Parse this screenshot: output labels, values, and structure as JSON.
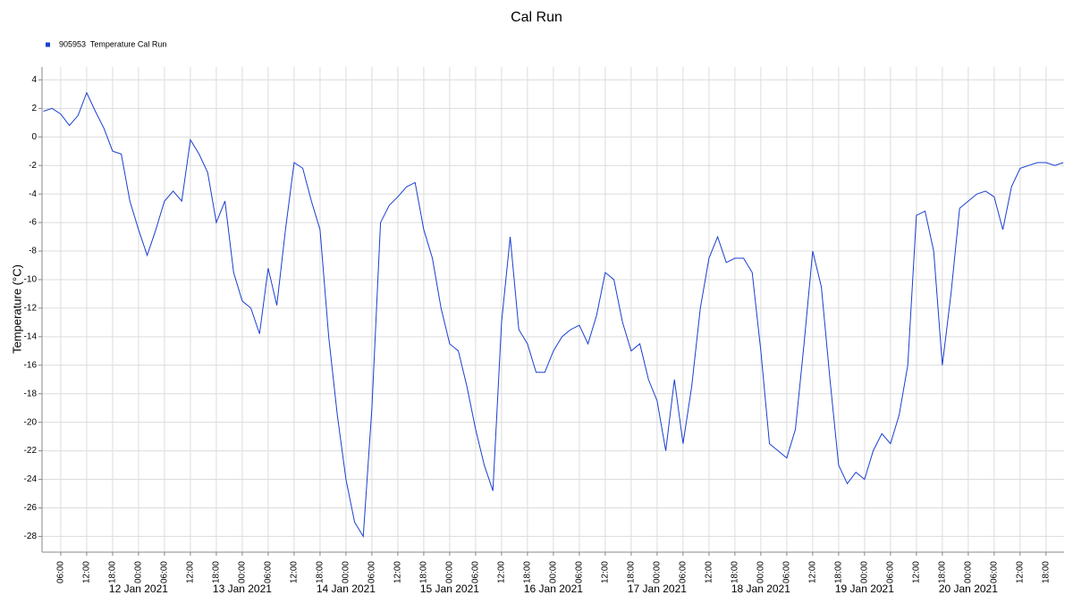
{
  "chart_data": {
    "type": "line",
    "title": "Cal Run",
    "ylabel": "Temperature (°C)",
    "series": [
      {
        "name": "905953  Temperature Cal Run",
        "color": "#1a3fd0",
        "x": [
          "2021-01-11T02:00",
          "2021-01-11T04:00",
          "2021-01-11T06:00",
          "2021-01-11T08:00",
          "2021-01-11T10:00",
          "2021-01-11T12:00",
          "2021-01-11T14:00",
          "2021-01-11T16:00",
          "2021-01-11T18:00",
          "2021-01-11T20:00",
          "2021-01-11T22:00",
          "2021-01-12T00:00",
          "2021-01-12T02:00",
          "2021-01-12T04:00",
          "2021-01-12T06:00",
          "2021-01-12T08:00",
          "2021-01-12T10:00",
          "2021-01-12T12:00",
          "2021-01-12T14:00",
          "2021-01-12T16:00",
          "2021-01-12T18:00",
          "2021-01-12T20:00",
          "2021-01-12T22:00",
          "2021-01-13T00:00",
          "2021-01-13T02:00",
          "2021-01-13T04:00",
          "2021-01-13T06:00",
          "2021-01-13T08:00",
          "2021-01-13T10:00",
          "2021-01-13T12:00",
          "2021-01-13T14:00",
          "2021-01-13T16:00",
          "2021-01-13T18:00",
          "2021-01-13T20:00",
          "2021-01-13T22:00",
          "2021-01-14T00:00",
          "2021-01-14T02:00",
          "2021-01-14T04:00",
          "2021-01-14T06:00",
          "2021-01-14T08:00",
          "2021-01-14T10:00",
          "2021-01-14T12:00",
          "2021-01-14T14:00",
          "2021-01-14T16:00",
          "2021-01-14T18:00",
          "2021-01-14T20:00",
          "2021-01-14T22:00",
          "2021-01-15T00:00",
          "2021-01-15T02:00",
          "2021-01-15T04:00",
          "2021-01-15T06:00",
          "2021-01-15T08:00",
          "2021-01-15T10:00",
          "2021-01-15T12:00",
          "2021-01-15T14:00",
          "2021-01-15T16:00",
          "2021-01-15T18:00",
          "2021-01-15T20:00",
          "2021-01-15T22:00",
          "2021-01-16T00:00",
          "2021-01-16T02:00",
          "2021-01-16T04:00",
          "2021-01-16T06:00",
          "2021-01-16T08:00",
          "2021-01-16T10:00",
          "2021-01-16T12:00",
          "2021-01-16T14:00",
          "2021-01-16T16:00",
          "2021-01-16T18:00",
          "2021-01-16T20:00",
          "2021-01-16T22:00",
          "2021-01-17T00:00",
          "2021-01-17T02:00",
          "2021-01-17T04:00",
          "2021-01-17T06:00",
          "2021-01-17T08:00",
          "2021-01-17T10:00",
          "2021-01-17T12:00",
          "2021-01-17T14:00",
          "2021-01-17T16:00",
          "2021-01-17T18:00",
          "2021-01-17T20:00",
          "2021-01-17T22:00",
          "2021-01-18T00:00",
          "2021-01-18T02:00",
          "2021-01-18T04:00",
          "2021-01-18T06:00",
          "2021-01-18T08:00",
          "2021-01-18T10:00",
          "2021-01-18T12:00",
          "2021-01-18T14:00",
          "2021-01-18T16:00",
          "2021-01-18T18:00",
          "2021-01-18T20:00",
          "2021-01-18T22:00",
          "2021-01-19T00:00",
          "2021-01-19T02:00",
          "2021-01-19T04:00",
          "2021-01-19T06:00",
          "2021-01-19T08:00",
          "2021-01-19T10:00",
          "2021-01-19T12:00",
          "2021-01-19T14:00",
          "2021-01-19T16:00",
          "2021-01-19T18:00",
          "2021-01-19T20:00",
          "2021-01-19T22:00",
          "2021-01-20T00:00",
          "2021-01-20T02:00",
          "2021-01-20T04:00",
          "2021-01-20T06:00",
          "2021-01-20T08:00",
          "2021-01-20T10:00",
          "2021-01-20T12:00",
          "2021-01-20T14:00",
          "2021-01-20T16:00",
          "2021-01-20T18:00",
          "2021-01-20T20:00",
          "2021-01-20T22:00"
        ],
        "values": [
          1.8,
          2.0,
          1.6,
          0.8,
          1.5,
          3.1,
          1.8,
          0.6,
          -1.0,
          -1.2,
          -4.5,
          -6.5,
          -8.3,
          -6.5,
          -4.5,
          -3.8,
          -4.5,
          -0.2,
          -1.2,
          -2.5,
          -6.0,
          -4.5,
          -9.5,
          -11.5,
          -12.0,
          -13.8,
          -9.2,
          -11.8,
          -6.5,
          -1.8,
          -2.2,
          -4.5,
          -6.5,
          -14.0,
          -19.5,
          -24.0,
          -27.0,
          -28.0,
          -19.0,
          -6.0,
          -4.8,
          -4.2,
          -3.5,
          -3.2,
          -6.5,
          -8.5,
          -12.0,
          -14.5,
          -15.0,
          -17.5,
          -20.5,
          -23.0,
          -24.8,
          -13.0,
          -7.0,
          -13.5,
          -14.5,
          -16.5,
          -16.5,
          -15.0,
          -14.0,
          -13.5,
          -13.2,
          -14.5,
          -12.5,
          -9.5,
          -10.0,
          -13.0,
          -15.0,
          -14.5,
          -17.0,
          -18.5,
          -22.0,
          -17.0,
          -21.5,
          -17.5,
          -12.0,
          -8.5,
          -7.0,
          -8.8,
          -8.5,
          -8.5,
          -9.5,
          -15.0,
          -21.5,
          -22.0,
          -22.5,
          -20.5,
          -14.5,
          -8.0,
          -10.5,
          -17.0,
          -23.0,
          -24.3,
          -23.5,
          -24.0,
          -22.0,
          -20.8,
          -21.5,
          -19.5,
          -16.0,
          -5.5,
          -5.2,
          -8.0,
          -16.0,
          -11.0,
          -5.0,
          -4.5,
          -4.0,
          -3.8,
          -4.2,
          -6.5,
          -3.5,
          -2.2,
          -2.0,
          -1.8,
          -1.8,
          -2.0,
          -1.8
        ]
      }
    ],
    "xlim": [
      "2021-01-11T01:40",
      "2021-01-20T22:10"
    ],
    "xticks": [
      {
        "value": "2021-01-11T06:00",
        "label": "06:00"
      },
      {
        "value": "2021-01-11T12:00",
        "label": "12:00"
      },
      {
        "value": "2021-01-11T18:00",
        "label": "18:00"
      },
      {
        "value": "2021-01-12T00:00",
        "label": "00:00"
      },
      {
        "value": "2021-01-12T06:00",
        "label": "06:00"
      },
      {
        "value": "2021-01-12T12:00",
        "label": "12:00"
      },
      {
        "value": "2021-01-12T18:00",
        "label": "18:00"
      },
      {
        "value": "2021-01-13T00:00",
        "label": "00:00"
      },
      {
        "value": "2021-01-13T06:00",
        "label": "06:00"
      },
      {
        "value": "2021-01-13T12:00",
        "label": "12:00"
      },
      {
        "value": "2021-01-13T18:00",
        "label": "18:00"
      },
      {
        "value": "2021-01-14T00:00",
        "label": "00:00"
      },
      {
        "value": "2021-01-14T06:00",
        "label": "06:00"
      },
      {
        "value": "2021-01-14T12:00",
        "label": "12:00"
      },
      {
        "value": "2021-01-14T18:00",
        "label": "18:00"
      },
      {
        "value": "2021-01-15T00:00",
        "label": "00:00"
      },
      {
        "value": "2021-01-15T06:00",
        "label": "06:00"
      },
      {
        "value": "2021-01-15T12:00",
        "label": "12:00"
      },
      {
        "value": "2021-01-15T18:00",
        "label": "18:00"
      },
      {
        "value": "2021-01-16T00:00",
        "label": "00:00"
      },
      {
        "value": "2021-01-16T06:00",
        "label": "06:00"
      },
      {
        "value": "2021-01-16T12:00",
        "label": "12:00"
      },
      {
        "value": "2021-01-16T18:00",
        "label": "18:00"
      },
      {
        "value": "2021-01-17T00:00",
        "label": "00:00"
      },
      {
        "value": "2021-01-17T06:00",
        "label": "06:00"
      },
      {
        "value": "2021-01-17T12:00",
        "label": "12:00"
      },
      {
        "value": "2021-01-17T18:00",
        "label": "18:00"
      },
      {
        "value": "2021-01-18T00:00",
        "label": "00:00"
      },
      {
        "value": "2021-01-18T06:00",
        "label": "06:00"
      },
      {
        "value": "2021-01-18T12:00",
        "label": "12:00"
      },
      {
        "value": "2021-01-18T18:00",
        "label": "18:00"
      },
      {
        "value": "2021-01-19T00:00",
        "label": "00:00"
      },
      {
        "value": "2021-01-19T06:00",
        "label": "06:00"
      },
      {
        "value": "2021-01-19T12:00",
        "label": "12:00"
      },
      {
        "value": "2021-01-19T18:00",
        "label": "18:00"
      },
      {
        "value": "2021-01-20T00:00",
        "label": "00:00"
      },
      {
        "value": "2021-01-20T06:00",
        "label": "06:00"
      },
      {
        "value": "2021-01-20T12:00",
        "label": "12:00"
      },
      {
        "value": "2021-01-20T18:00",
        "label": "18:00"
      }
    ],
    "date_ticks": [
      {
        "value": "2021-01-12T00:00",
        "label": "12 Jan 2021"
      },
      {
        "value": "2021-01-13T00:00",
        "label": "13 Jan 2021"
      },
      {
        "value": "2021-01-14T00:00",
        "label": "14 Jan 2021"
      },
      {
        "value": "2021-01-15T00:00",
        "label": "15 Jan 2021"
      },
      {
        "value": "2021-01-16T00:00",
        "label": "16 Jan 2021"
      },
      {
        "value": "2021-01-17T00:00",
        "label": "17 Jan 2021"
      },
      {
        "value": "2021-01-18T00:00",
        "label": "18 Jan 2021"
      },
      {
        "value": "2021-01-19T00:00",
        "label": "19 Jan 2021"
      },
      {
        "value": "2021-01-20T00:00",
        "label": "20 Jan 2021"
      }
    ],
    "ylim": [
      -29.1,
      4.9
    ],
    "yticks": [
      4,
      2,
      0,
      -2,
      -4,
      -6,
      -8,
      -10,
      -12,
      -14,
      -16,
      -18,
      -20,
      -22,
      -24,
      -26,
      -28
    ],
    "grid": true,
    "legend": "top-left"
  }
}
